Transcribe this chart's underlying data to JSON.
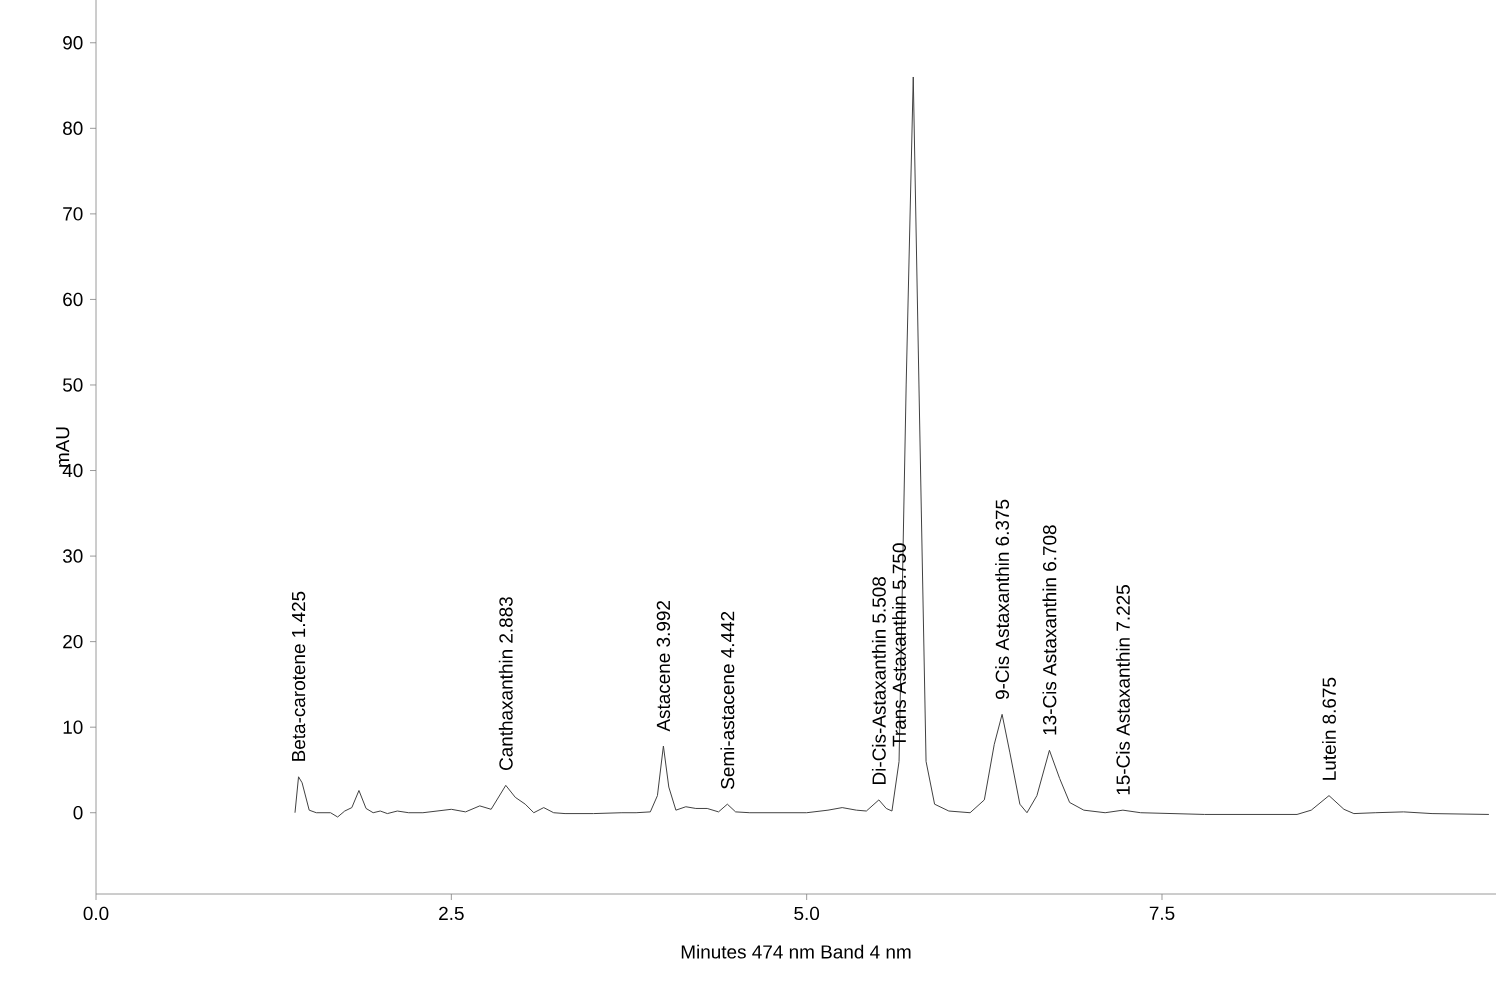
{
  "chart_data": {
    "type": "line",
    "xlabel": "Minutes    474 nm Band    4 nm",
    "ylabel": "mAU",
    "x": [
      1.4,
      1.425,
      1.45,
      1.5,
      1.55,
      1.65,
      1.7,
      1.75,
      1.8,
      1.85,
      1.9,
      1.95,
      2.0,
      2.05,
      2.12,
      2.2,
      2.3,
      2.4,
      2.5,
      2.6,
      2.7,
      2.78,
      2.883,
      2.95,
      3.02,
      3.08,
      3.15,
      3.22,
      3.3,
      3.5,
      3.7,
      3.8,
      3.9,
      3.95,
      3.992,
      4.03,
      4.08,
      4.15,
      4.22,
      4.3,
      4.38,
      4.442,
      4.5,
      4.6,
      4.8,
      5.0,
      5.15,
      5.25,
      5.35,
      5.42,
      5.508,
      5.56,
      5.6,
      5.65,
      5.7,
      5.75,
      5.79,
      5.84,
      5.9,
      6.0,
      6.15,
      6.25,
      6.32,
      6.375,
      6.43,
      6.5,
      6.55,
      6.62,
      6.708,
      6.78,
      6.85,
      6.95,
      7.1,
      7.225,
      7.35,
      7.8,
      8.45,
      8.55,
      8.675,
      8.78,
      8.85,
      9.0,
      9.2,
      9.4,
      9.8
    ],
    "series": [
      {
        "color": "#404040",
        "values": [
          0,
          4.2,
          3.5,
          0.3,
          0,
          0,
          -0.5,
          0.2,
          0.6,
          2.6,
          0.5,
          0,
          0.2,
          -0.1,
          0.2,
          0,
          0,
          0.2,
          0.4,
          0.1,
          0.8,
          0.4,
          3.2,
          1.8,
          1.0,
          0.0,
          0.6,
          0,
          -0.1,
          -0.1,
          0,
          0,
          0.1,
          2,
          7.8,
          3,
          0.3,
          0.7,
          0.5,
          0.5,
          0.1,
          1.0,
          0.1,
          0,
          0,
          0,
          0.3,
          0.6,
          0.3,
          0.2,
          1.5,
          0.5,
          0.2,
          6,
          50,
          86,
          50,
          6,
          1,
          0.2,
          0,
          1.5,
          8,
          11.5,
          7,
          1,
          0,
          2,
          7.3,
          4,
          1.2,
          0.3,
          0,
          0.3,
          0,
          -0.2,
          -0.2,
          0.3,
          2.0,
          0.4,
          -0.1,
          0,
          0.1,
          -0.1,
          -0.2
        ]
      }
    ],
    "xlim": [
      0,
      9.85
    ],
    "ylim": [
      -9.5,
      95
    ],
    "xticks": [
      {
        "value": 0,
        "label": "0.0"
      },
      2.5,
      {
        "value": 5,
        "label": "5.0"
      },
      7.5
    ],
    "yticks": [
      0,
      10,
      20,
      30,
      40,
      50,
      60,
      70,
      80,
      90
    ],
    "grid": false,
    "marker": "none",
    "line_style": "solid",
    "annotations": [
      {
        "text": "Beta-carotene 1.425",
        "x": 1.425,
        "y": 4.2
      },
      {
        "text": "Canthaxanthin 2.883",
        "x": 2.883,
        "y": 3.2
      },
      {
        "text": "Astacene 3.992",
        "x": 3.992,
        "y": 7.8
      },
      {
        "text": "Semi-astacene 4.442",
        "x": 4.442,
        "y": 1.0
      },
      {
        "text": "Di-Cis-Astaxanthin 5.508",
        "x": 5.508,
        "y": 1.5
      },
      {
        "text": "Trans Astaxanthin 5.750",
        "x": 5.65,
        "y": 6
      },
      {
        "text": "9-Cis Astaxanthin 6.375",
        "x": 6.375,
        "y": 11.5
      },
      {
        "text": "13-Cis Astaxanthin 6.708",
        "x": 6.708,
        "y": 7.3
      },
      {
        "text": "15-Cis Astaxanthin 7.225",
        "x": 7.225,
        "y": 0.3
      },
      {
        "text": "Lutein 8.675",
        "x": 8.675,
        "y": 2.0
      }
    ]
  }
}
